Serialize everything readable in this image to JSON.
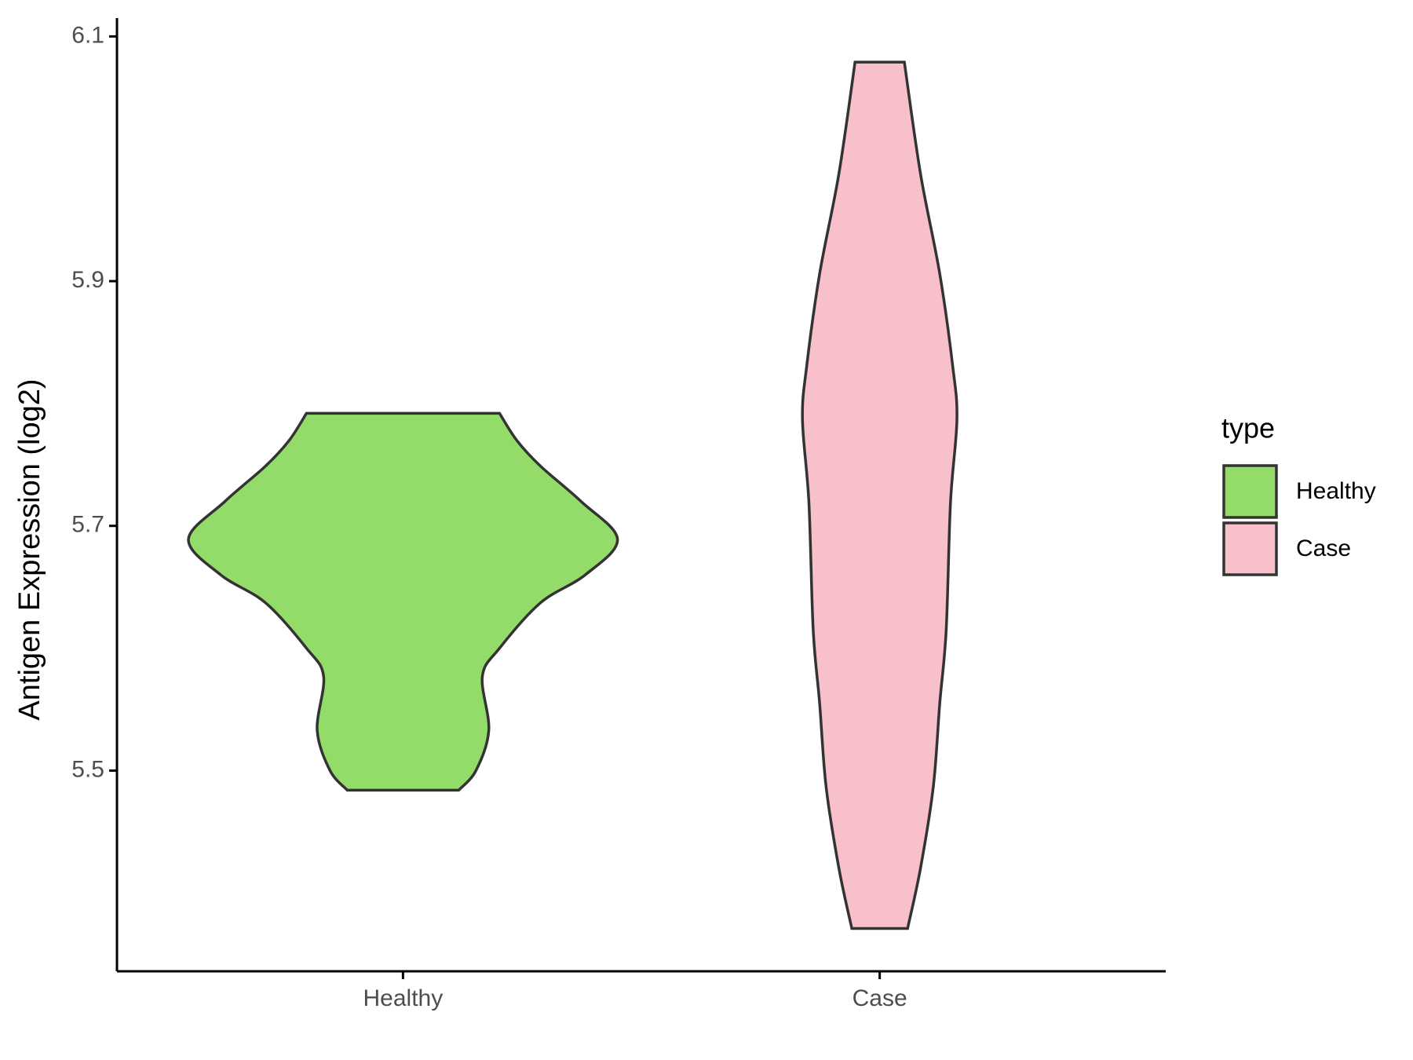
{
  "chart_data": {
    "type": "violin",
    "y_label": "Antigen Expression (log2)",
    "categories": [
      "Healthy",
      "Case"
    ],
    "series": [
      {
        "name": "Healthy",
        "color": "#93dc6a",
        "y": [
          5.792,
          5.77,
          5.749,
          5.72,
          5.689,
          5.66,
          5.637,
          5.6,
          5.577,
          5.533,
          5.5,
          5.484
        ],
        "width": [
          0.45,
          0.53,
          0.64,
          0.83,
          1.0,
          0.85,
          0.64,
          0.45,
          0.37,
          0.4,
          0.34,
          0.26
        ]
      },
      {
        "name": "Case",
        "color": "#f7c0cb",
        "y": [
          6.079,
          5.988,
          5.906,
          5.831,
          5.787,
          5.719,
          5.615,
          5.555,
          5.487,
          5.42,
          5.371
        ],
        "width": [
          0.115,
          0.19,
          0.28,
          0.34,
          0.36,
          0.33,
          0.31,
          0.28,
          0.25,
          0.19,
          0.13
        ]
      }
    ],
    "ylim": [
      5.336,
      6.115
    ],
    "yticks": [
      5.5,
      5.7,
      5.9,
      6.1
    ],
    "legend_title": "type",
    "legend": "right"
  }
}
